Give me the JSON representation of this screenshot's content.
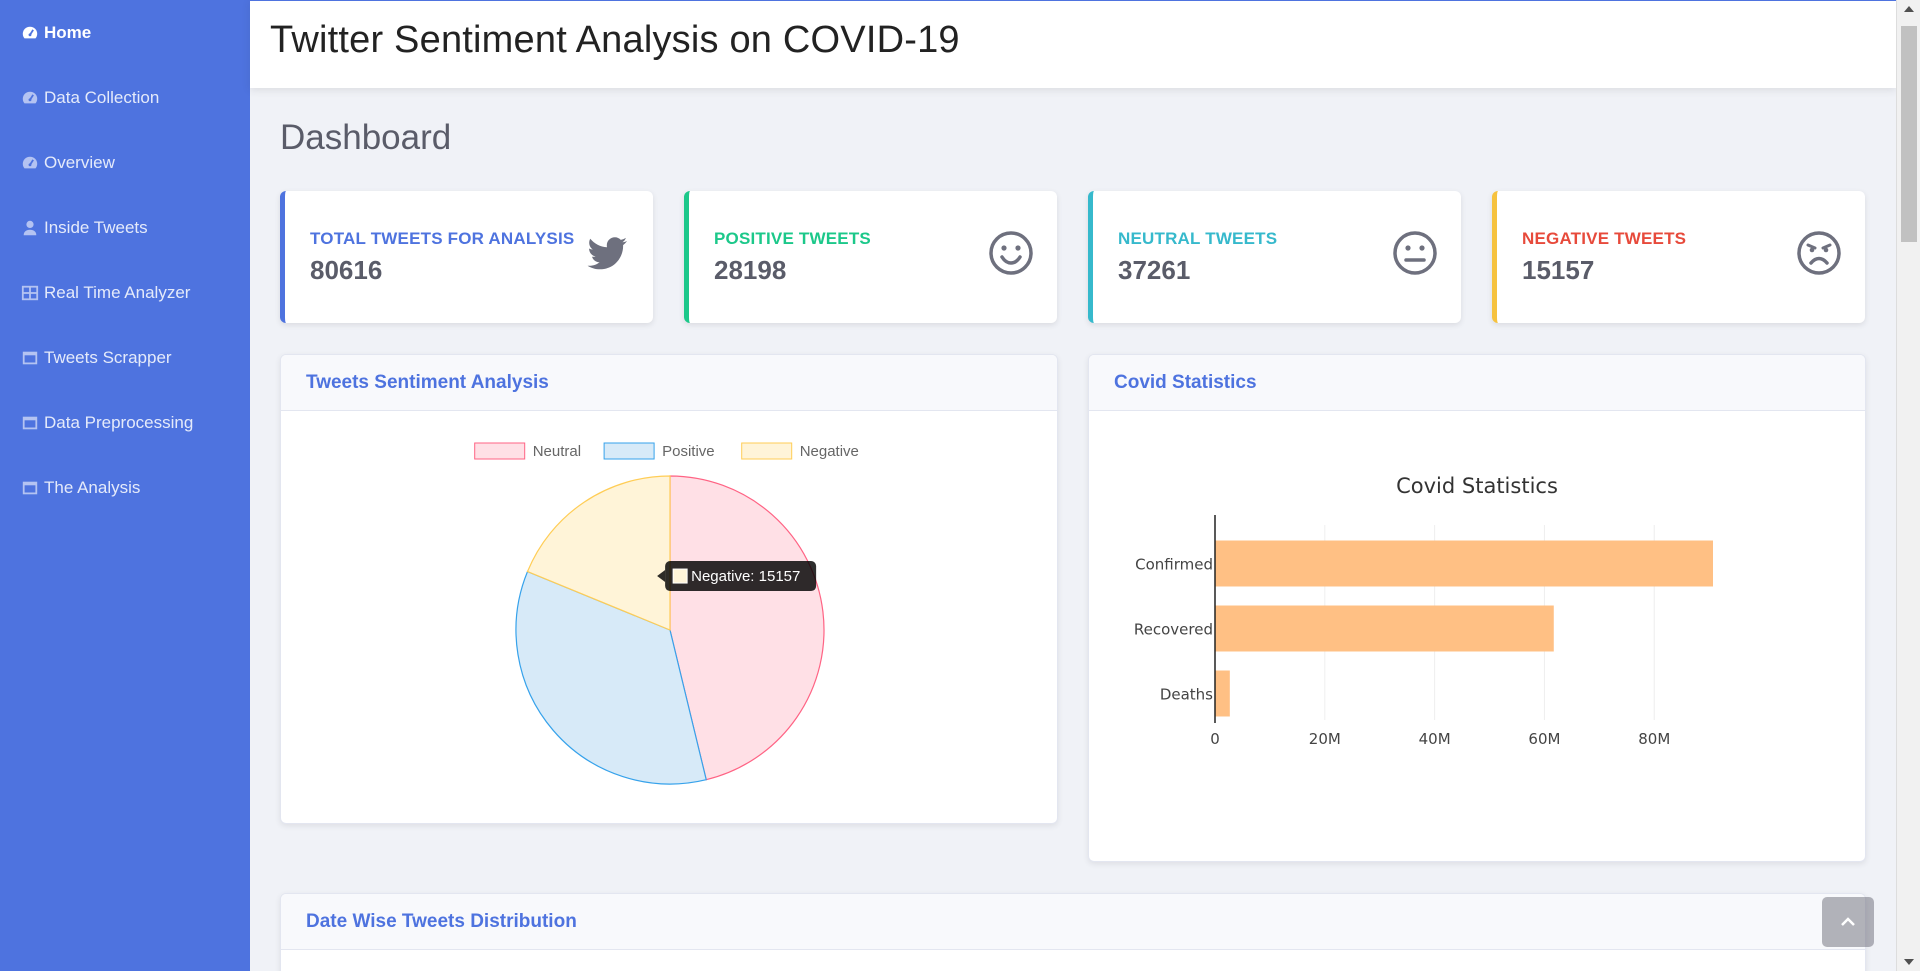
{
  "app": {
    "title": "Twitter Sentiment Analysis on COVID-19"
  },
  "sidebar": {
    "items": [
      {
        "label": "Home",
        "icon": "tachometer-icon",
        "active": true
      },
      {
        "label": "Data Collection",
        "icon": "tachometer-icon"
      },
      {
        "label": "Overview",
        "icon": "tachometer-icon"
      },
      {
        "label": "Inside Tweets",
        "icon": "user-icon"
      },
      {
        "label": "Real Time Analyzer",
        "icon": "table-icon"
      },
      {
        "label": "Tweets Scrapper",
        "icon": "window-icon"
      },
      {
        "label": "Data Preprocessing",
        "icon": "window-icon"
      },
      {
        "label": "The Analysis",
        "icon": "window-icon"
      }
    ]
  },
  "page": {
    "heading": "Dashboard"
  },
  "cards": [
    {
      "label": "TOTAL TWEETS FOR ANALYSIS",
      "value": "80616",
      "color": "#4e73df",
      "icon": "twitter-icon"
    },
    {
      "label": "POSITIVE  TWEETS",
      "value": "28198",
      "color": "#1cc88a",
      "icon": "smile-icon"
    },
    {
      "label": "NEUTRAL TWEETS",
      "value": "37261",
      "color": "#36b9cc",
      "icon": "meh-icon"
    },
    {
      "label": "NEGATIVE TWEETS",
      "value": "15157",
      "color": "#e74a3b",
      "icon": "angry-icon"
    }
  ],
  "panels": {
    "sentiment": {
      "title": "Tweets Sentiment Analysis"
    },
    "covid": {
      "title": "Covid Statistics"
    },
    "datewise": {
      "title": "Date Wise Tweets Distribution"
    }
  },
  "chart_data": [
    {
      "type": "pie",
      "categories": [
        "Neutral",
        "Positive",
        "Negative"
      ],
      "values": [
        37261,
        28198,
        15157
      ],
      "colors": {
        "Neutral": {
          "fill": "#ffe0e6",
          "stroke": "#ff6384"
        },
        "Positive": {
          "fill": "#d7eaf8",
          "stroke": "#36a2eb"
        },
        "Negative": {
          "fill": "#fff4d8",
          "stroke": "#ffcd56"
        }
      },
      "legend": "top",
      "tooltip": {
        "text": "Negative: 15157",
        "series": "Negative"
      }
    },
    {
      "type": "bar",
      "orientation": "horizontal",
      "title": "Covid Statistics",
      "categories": [
        "Confirmed",
        "Recovered",
        "Deaths"
      ],
      "values": [
        90700000,
        61700000,
        2700000
      ],
      "xlim": [
        0,
        90700000
      ],
      "xticks": [
        0,
        20000000,
        40000000,
        60000000,
        80000000
      ],
      "xtick_labels": [
        "0",
        "20M",
        "40M",
        "60M",
        "80M"
      ],
      "bar_color": "#ffc084",
      "grid": true
    }
  ]
}
